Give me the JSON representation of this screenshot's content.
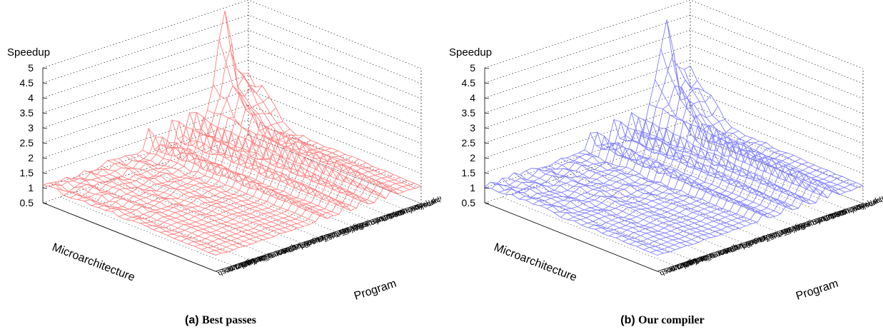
{
  "chart_data": [
    {
      "type": "surface",
      "panel_label": "(a)",
      "caption": "Best passes",
      "zlabel": "Speedup",
      "xlabel": "Microarchitecture",
      "ylabel": "Program",
      "zlim": [
        0.5,
        5
      ],
      "z_ticks": [
        "5",
        "4.5",
        "4",
        "3.5",
        "3",
        "2.5",
        "2",
        "1.5",
        "1",
        "0.5"
      ],
      "programs": [
        "qsort",
        "rawcaudio",
        "tiff2rgba",
        "tiff2bw",
        "patricia",
        "dijpeg",
        "bitcnts",
        "fft_i",
        "basicmath",
        "susan_s",
        "lout",
        "susan_c",
        "fft",
        "tiffmedian",
        "pgp",
        "crc",
        "tiffdither",
        "bf_e",
        "pgp_sa",
        "rawdaudio",
        "bf_d",
        "djpeg",
        "cjpeg",
        "ispell",
        "gsm",
        "susan_e",
        "dijkstra",
        "madplay",
        "untoast",
        "toast",
        "sha",
        "bitcnts",
        "rijndael_d",
        "say",
        "rijndael_e",
        "search"
      ],
      "series_color": "#ff7f7f",
      "peak_speedup": 4.9
    },
    {
      "type": "surface",
      "panel_label": "(b)",
      "caption": "Our compiler",
      "zlabel": "Speedup",
      "xlabel": "Microarchitecture",
      "ylabel": "Program",
      "zlim": [
        0.5,
        5
      ],
      "z_ticks": [
        "5",
        "4.5",
        "4",
        "3.5",
        "3",
        "2.5",
        "2",
        "1.5",
        "1",
        "0.5"
      ],
      "programs": [
        "qsort",
        "rawcaudio",
        "tiff2rgba",
        "tiff2bw",
        "patricia",
        "dijpeg",
        "bitcnts",
        "fft_i",
        "basicmath",
        "susan_s",
        "lout",
        "susan_c",
        "fft",
        "tiffmedian",
        "pgp",
        "crc",
        "tiffdither",
        "bf_e",
        "pgp_sa",
        "rawdaudio",
        "bf_d",
        "djpeg",
        "cjpeg",
        "ispell",
        "gsm",
        "susan_e",
        "dijkstra",
        "madplay",
        "untoast",
        "toast",
        "sha",
        "bitcnts",
        "rijndael_d",
        "say",
        "rijndael_e",
        "search"
      ],
      "series_color": "#7f7fff",
      "peak_speedup": 4.6
    }
  ]
}
